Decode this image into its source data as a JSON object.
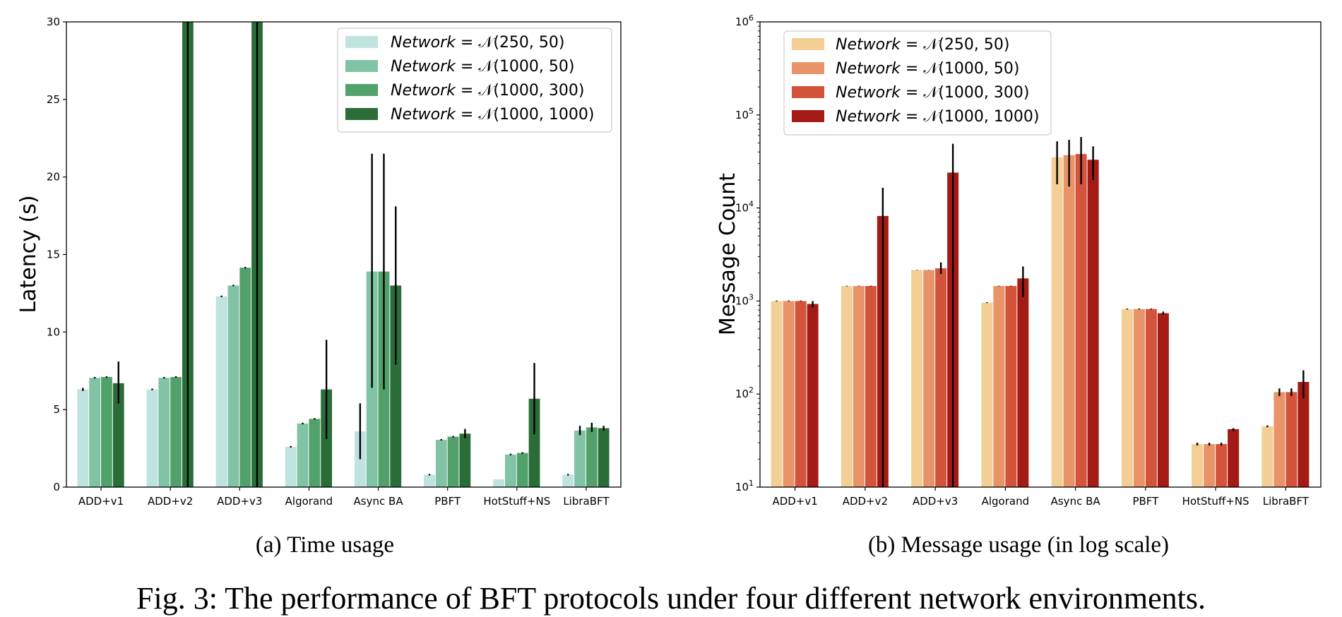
{
  "figure_caption": "Fig. 3: The performance of BFT protocols under four different network environments.",
  "chart_data": [
    {
      "type": "bar",
      "caption": "(a) Time usage",
      "ylabel": "Latency (s)",
      "xlabel": "",
      "ylim": [
        0,
        30
      ],
      "yticks": [
        0,
        5,
        10,
        15,
        20,
        25,
        30
      ],
      "scale": "linear",
      "grid": false,
      "legend_position": "top-right",
      "categories": [
        "ADD+v1",
        "ADD+v2",
        "ADD+v3",
        "Algorand",
        "Async BA",
        "PBFT",
        "HotStuff+NS",
        "LibraBFT"
      ],
      "series": [
        {
          "name_prefix": "Network",
          "name_suffix": " = 𝒩(250, 50)",
          "color": "#bfe3df",
          "values": [
            6.3,
            6.3,
            12.3,
            2.6,
            3.6,
            0.8,
            0.5,
            0.8
          ],
          "err_low": [
            6.2,
            6.25,
            12.25,
            2.55,
            1.8,
            0.75,
            0.5,
            0.75
          ],
          "err_high": [
            6.4,
            6.35,
            12.35,
            2.65,
            5.4,
            0.85,
            0.5,
            0.85
          ]
        },
        {
          "name_prefix": "Network",
          "name_suffix": " = 𝒩(1000, 50)",
          "color": "#80c3a5",
          "values": [
            7.05,
            7.05,
            13.0,
            4.1,
            13.9,
            3.05,
            2.1,
            3.65
          ],
          "err_low": [
            7.0,
            7.0,
            12.95,
            4.05,
            6.4,
            3.0,
            2.05,
            3.35
          ],
          "err_high": [
            7.1,
            7.1,
            13.05,
            4.15,
            21.5,
            3.1,
            2.15,
            3.95
          ]
        },
        {
          "name_prefix": "Network",
          "name_suffix": " = 𝒩(1000, 300)",
          "color": "#52a16b",
          "values": [
            7.1,
            7.1,
            14.15,
            4.4,
            13.9,
            3.25,
            2.2,
            3.85
          ],
          "err_low": [
            7.05,
            7.05,
            14.1,
            4.35,
            6.3,
            3.2,
            2.15,
            3.55
          ],
          "err_high": [
            7.15,
            7.15,
            14.2,
            4.45,
            21.5,
            3.3,
            2.25,
            4.15
          ]
        },
        {
          "name_prefix": "Network",
          "name_suffix": " = 𝒩(1000, 1000)",
          "color": "#2a6d38",
          "values": [
            6.7,
            30,
            30,
            6.3,
            13.0,
            3.45,
            5.7,
            3.8
          ],
          "err_low": [
            5.4,
            0,
            0,
            3.1,
            7.9,
            3.15,
            3.4,
            3.65
          ],
          "err_high": [
            8.1,
            30,
            30,
            9.5,
            18.1,
            3.75,
            8.0,
            3.95
          ]
        }
      ]
    },
    {
      "type": "bar",
      "caption": "(b) Message usage (in log scale)",
      "ylabel": "Message Count",
      "xlabel": "",
      "ylim": [
        10,
        1000000
      ],
      "scale": "log",
      "ytick_mantissa": "10",
      "ytick_exponents": [
        "1",
        "2",
        "3",
        "4",
        "5",
        "6"
      ],
      "grid": false,
      "legend_position": "top-left",
      "categories": [
        "ADD+v1",
        "ADD+v2",
        "ADD+v3",
        "Algorand",
        "Async BA",
        "PBFT",
        "HotStuff+NS",
        "LibraBFT"
      ],
      "series": [
        {
          "name_prefix": "Network",
          "name_suffix": " = 𝒩(250, 50)",
          "color": "#f3cf95",
          "values": [
            1000,
            1450,
            2150,
            960,
            35000,
            820,
            29,
            45
          ],
          "err_low": [
            990,
            1440,
            2140,
            950,
            18000,
            810,
            28,
            44
          ],
          "err_high": [
            1010,
            1460,
            2160,
            970,
            52000,
            830,
            30,
            46
          ]
        },
        {
          "name_prefix": "Network",
          "name_suffix": " = 𝒩(1000, 50)",
          "color": "#e99468",
          "values": [
            1000,
            1450,
            2150,
            1450,
            37000,
            820,
            29,
            105
          ],
          "err_low": [
            990,
            1440,
            2140,
            1440,
            17000,
            810,
            28,
            95
          ],
          "err_high": [
            1010,
            1460,
            2160,
            1460,
            54000,
            830,
            30,
            115
          ]
        },
        {
          "name_prefix": "Network",
          "name_suffix": " = 𝒩(1000, 300)",
          "color": "#d3543b",
          "values": [
            1000,
            1450,
            2250,
            1450,
            38000,
            820,
            29,
            105
          ],
          "err_low": [
            990,
            1440,
            1950,
            1440,
            18000,
            810,
            28,
            95
          ],
          "err_high": [
            1010,
            1460,
            2600,
            1460,
            58000,
            830,
            30,
            115
          ]
        },
        {
          "name_prefix": "Network",
          "name_suffix": " = 𝒩(1000, 1000)",
          "color": "#a31b14",
          "values": [
            930,
            8200,
            24000,
            1750,
            33000,
            740,
            42,
            135
          ],
          "err_low": [
            850,
            10,
            10,
            1100,
            20000,
            710,
            40,
            90
          ],
          "err_high": [
            1000,
            16500,
            49000,
            2350,
            46000,
            770,
            43,
            180
          ]
        }
      ]
    }
  ]
}
